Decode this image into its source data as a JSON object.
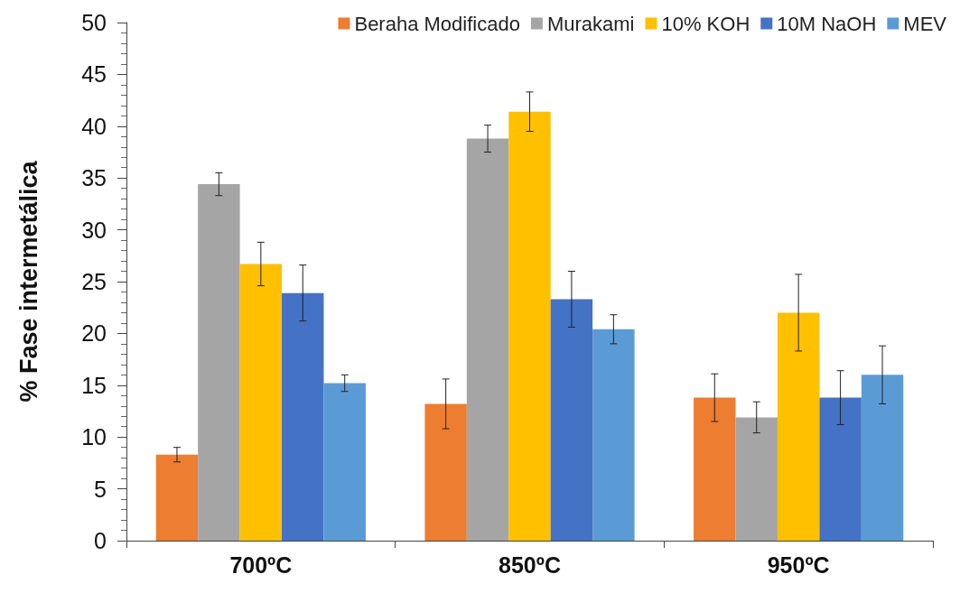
{
  "chart_data": {
    "type": "bar",
    "ylabel": "% Fase intermetálica",
    "categories": [
      "700ºC",
      "850ºC",
      "950ºC"
    ],
    "series": [
      {
        "name": "Beraha Modificado",
        "color": "#ed7d31",
        "values": [
          8.3,
          13.2,
          13.8
        ],
        "errors": [
          0.7,
          2.4,
          2.3
        ]
      },
      {
        "name": "Murakami",
        "color": "#a5a5a5",
        "values": [
          34.4,
          38.8,
          11.9
        ],
        "errors": [
          1.1,
          1.3,
          1.5
        ]
      },
      {
        "name": "10% KOH",
        "color": "#ffc000",
        "values": [
          26.7,
          41.4,
          22.0
        ],
        "errors": [
          2.1,
          1.9,
          3.7
        ]
      },
      {
        "name": "10M NaOH",
        "color": "#4472c4",
        "values": [
          23.9,
          23.3,
          13.8
        ],
        "errors": [
          2.7,
          2.7,
          2.6
        ]
      },
      {
        "name": "MEV",
        "color": "#5b9bd5",
        "values": [
          15.2,
          20.4,
          16.0
        ],
        "errors": [
          0.8,
          1.4,
          2.8
        ]
      }
    ],
    "ylim": [
      0,
      50
    ],
    "yticks": [
      0,
      5,
      10,
      15,
      20,
      25,
      30,
      35,
      40,
      45,
      50
    ],
    "grid": false,
    "legend": "top right"
  }
}
